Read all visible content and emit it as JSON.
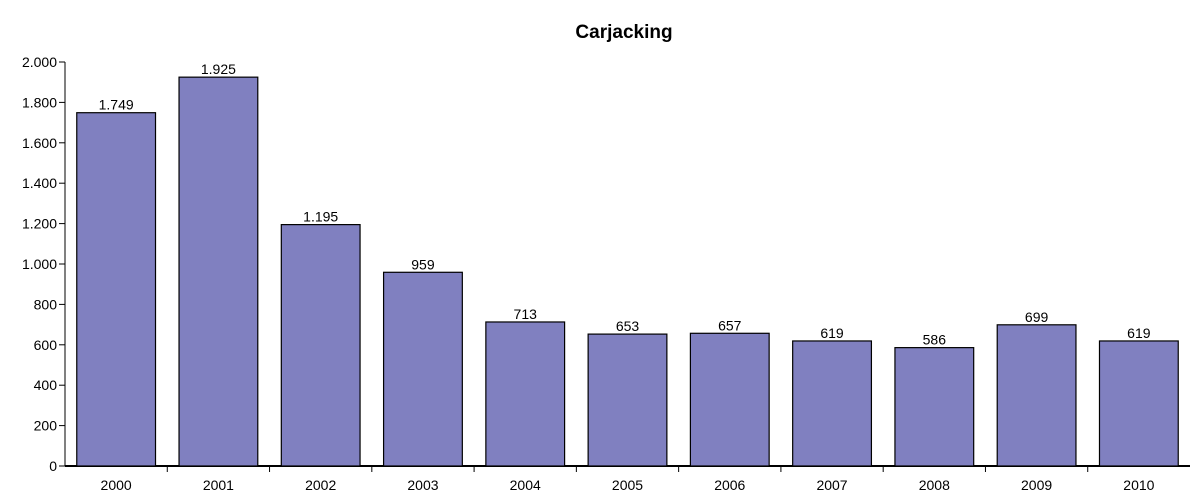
{
  "chart_data": {
    "type": "bar",
    "title": "Carjacking",
    "xlabel": "",
    "ylabel": "",
    "categories": [
      "2000",
      "2001",
      "2002",
      "2003",
      "2004",
      "2005",
      "2006",
      "2007",
      "2008",
      "2009",
      "2010"
    ],
    "values": [
      1749,
      1925,
      1195,
      959,
      713,
      653,
      657,
      619,
      586,
      699,
      619
    ],
    "value_labels": [
      "1.749",
      "1.925",
      "1.195",
      "959",
      "713",
      "653",
      "657",
      "619",
      "586",
      "699",
      "619"
    ],
    "yticks": [
      0,
      200,
      400,
      600,
      800,
      1000,
      1200,
      1400,
      1600,
      1800,
      2000
    ],
    "ytick_labels": [
      "0",
      "200",
      "400",
      "600",
      "800",
      "1.000",
      "1.200",
      "1.400",
      "1.600",
      "1.800",
      "2.000"
    ],
    "ylim": [
      0,
      2000
    ],
    "grid": false,
    "legend": "none",
    "colors": {
      "bar_fill": "#8080c0",
      "bar_stroke": "#000000",
      "axis": "#000000"
    }
  }
}
